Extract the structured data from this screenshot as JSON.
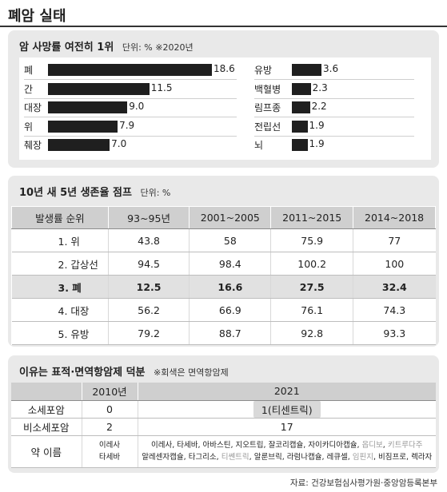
{
  "title": "폐암 실태",
  "sections": {
    "mortality": {
      "heading": "암 사망률 여전히 1위",
      "unit": "단위: % ※2020년"
    },
    "survival": {
      "heading": "10년 새 5년 생존율 점프",
      "unit": "단위: %"
    },
    "drugs": {
      "heading": "이유는 표적·면역항암제 덕분",
      "unit": "※회색은 면역항암제"
    }
  },
  "source": "자료: 건강보험심사평가원·중앙암등록본부",
  "chart_data": [
    {
      "type": "bar",
      "title": "암 사망률 여전히 1위",
      "unit": "단위: % ※2020년",
      "orientation": "horizontal",
      "groups": [
        {
          "categories": [
            "폐",
            "간",
            "대장",
            "위",
            "췌장"
          ],
          "values": [
            18.6,
            11.5,
            9.0,
            7.9,
            7.0
          ]
        },
        {
          "categories": [
            "유방",
            "백혈병",
            "림프종",
            "전립선",
            "뇌"
          ],
          "values": [
            3.6,
            2.3,
            2.2,
            1.9,
            1.9
          ]
        }
      ],
      "value_labels": {
        "left": [
          "18.6",
          "11.5",
          "9.0",
          "7.9",
          "7.0"
        ],
        "right": [
          "3.6",
          "2.3",
          "2.2",
          "1.9",
          "1.9"
        ]
      },
      "bar_color": "#1f1f1f"
    },
    {
      "type": "table",
      "title": "10년 새 5년 생존율 점프",
      "unit": "단위: %",
      "columns": [
        "발생률 순위",
        "93~95년",
        "2001~2005",
        "2011~2015",
        "2014~2018"
      ],
      "rows": [
        [
          "1. 위",
          "43.8",
          "58",
          "75.9",
          "77"
        ],
        [
          "2. 갑상선",
          "94.5",
          "98.4",
          "100.2",
          "100"
        ],
        [
          "3. 폐",
          "12.5",
          "16.6",
          "27.5",
          "32.4"
        ],
        [
          "4. 대장",
          "56.2",
          "66.9",
          "76.1",
          "74.3"
        ],
        [
          "5. 유방",
          "79.2",
          "88.7",
          "92.8",
          "93.3"
        ]
      ],
      "highlight_row": 2
    },
    {
      "type": "table",
      "title": "이유는 표적·면역항암제 덕분",
      "note": "※회색은 면역항암제",
      "columns": [
        "",
        "2010년",
        "2021"
      ],
      "rows": [
        {
          "name": "소세포암",
          "y2010": "0",
          "y2021": "1(티센트릭)"
        },
        {
          "name": "비소세포암",
          "y2010": "2",
          "y2021": "17"
        }
      ],
      "drug_row": {
        "name": "약 이름",
        "y2010": [
          "이레사",
          "타세바"
        ],
        "y2021_line1": [
          {
            "t": "이레사",
            "immuno": false
          },
          {
            "t": "타세바",
            "immuno": false
          },
          {
            "t": "아바스틴",
            "immuno": false
          },
          {
            "t": "지오트립",
            "immuno": false
          },
          {
            "t": "잘코리캡슐",
            "immuno": false
          },
          {
            "t": "자이카디아캡슐",
            "immuno": false
          },
          {
            "t": "옵디보",
            "immuno": true
          },
          {
            "t": "키트루다주",
            "immuno": true
          }
        ],
        "y2021_line2": [
          {
            "t": "알레센자캡슐",
            "immuno": false
          },
          {
            "t": "타그리소",
            "immuno": false
          },
          {
            "t": "티쎈트릭",
            "immuno": true
          },
          {
            "t": "알룬브릭",
            "immuno": false
          },
          {
            "t": "라럼나캡슐",
            "immuno": false
          },
          {
            "t": "레큐셀",
            "immuno": false
          },
          {
            "t": "임핀지",
            "immuno": true
          },
          {
            "t": "비짐프로",
            "immuno": false
          },
          {
            "t": "렉라자",
            "immuno": false
          }
        ]
      }
    }
  ]
}
